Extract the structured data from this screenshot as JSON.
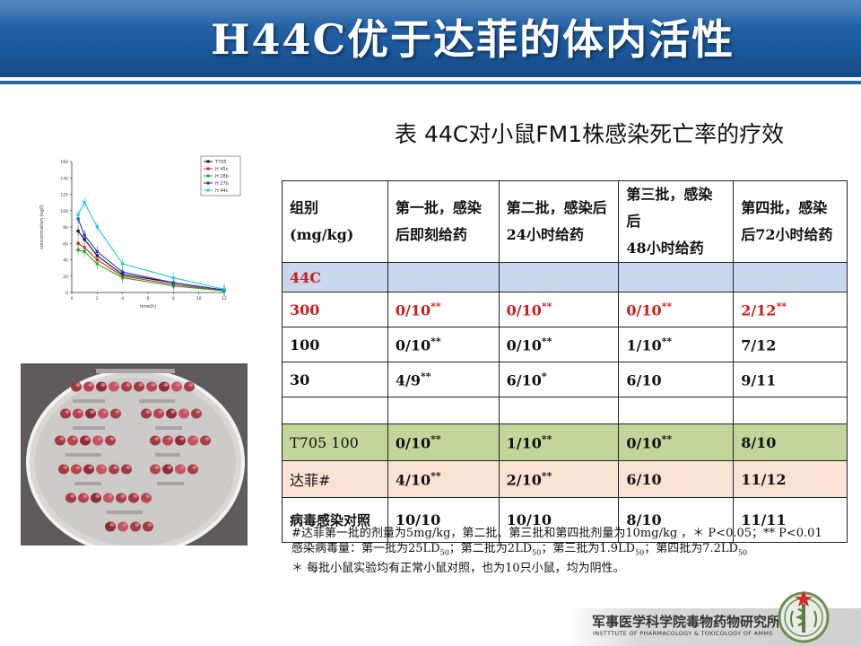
{
  "page": {
    "title": "H44C优于达菲的体内活性"
  },
  "caption": "表  44C对小鼠FM1株感染死亡率的疗效",
  "table": {
    "header": {
      "c1_l1": "组别",
      "c1_l2": "(mg/kg)",
      "c2_l1": "第一批，感染",
      "c2_l2": "后即刻给药",
      "c3_l1": "第二批，感染后",
      "c3_l2": "24小时给药",
      "c4_l1": "第三批，感染后",
      "c4_l2": "48小时给药",
      "c5_l1": "第四批，感染",
      "c5_l2": "后72小时给药"
    },
    "group_44c": "44C",
    "rows": [
      {
        "group": "300",
        "b1": "0/10",
        "b1s": "**",
        "b2": "0/10",
        "b2s": "**",
        "b3": "0/10",
        "b3s": "**",
        "b4": "2/12",
        "b4s": "**"
      },
      {
        "group": "100",
        "b1": "0/10",
        "b1s": "**",
        "b2": "0/10",
        "b2s": "**",
        "b3": "1/10",
        "b3s": "**",
        "b4": "7/12",
        "b4s": ""
      },
      {
        "group": "30",
        "b1": "4/9",
        "b1s": "**",
        "b2": "6/10",
        "b2s": "*",
        "b3": "6/10",
        "b3s": "",
        "b4": "9/11",
        "b4s": ""
      }
    ],
    "t705": {
      "group": "T705 100",
      "b1": "0/10",
      "b1s": "**",
      "b2": "1/10",
      "b2s": "**",
      "b3": "0/10",
      "b3s": "**",
      "b4": "8/10"
    },
    "tamiflu": {
      "group": "达菲#",
      "b1": "4/10",
      "b1s": "**",
      "b2": "2/10",
      "b2s": "**",
      "b3": "6/10",
      "b4": "11/12"
    },
    "control": {
      "group": "病毒感染对照",
      "b1": "10/10",
      "b2": "10/10",
      "b3": "8/10",
      "b4": "11/11"
    }
  },
  "notes": {
    "line1": "#达菲第一批的剂量为5mg/kg，第二批、第三批和第四批剂量为10mg/kg ，＊ P<0.05；** P<0.01",
    "line2_a": "感染病毒量：第一批为25LD",
    "line2_b": "；第二批为2LD",
    "line2_c": "；第三批为1.9LD",
    "line2_d": "；第四批为7.2LD",
    "sub50": "50",
    "line3": "＊ 每批小鼠实验均有正常小鼠对照，也为10只小鼠，均为阴性。"
  },
  "footer": {
    "institute_cn": "军事医学科学院毒物药物研究所",
    "institute_en": "INSTTTUTE OF PHARMACOLOGY & TOXICOLOGY OF AMMS"
  },
  "chart_data": {
    "type": "line",
    "xlabel": "time(h)",
    "ylabel": "concentration (ug/l)",
    "x": [
      0.5,
      1,
      2,
      4,
      8,
      12
    ],
    "xlim": [
      0,
      12
    ],
    "ylim": [
      0,
      160
    ],
    "series": [
      {
        "name": "T705",
        "color": "#111111",
        "values": [
          75,
          65,
          45,
          22,
          12,
          3
        ]
      },
      {
        "name": "H 45c",
        "color": "#d42020",
        "values": [
          60,
          55,
          40,
          20,
          10,
          2
        ]
      },
      {
        "name": "H 28b",
        "color": "#22aa22",
        "values": [
          52,
          50,
          35,
          18,
          8,
          2
        ]
      },
      {
        "name": "H 27b",
        "color": "#2233cc",
        "values": [
          90,
          70,
          50,
          25,
          12,
          3
        ]
      },
      {
        "name": "H 44c",
        "color": "#1ec8d8",
        "values": [
          95,
          110,
          80,
          35,
          18,
          4
        ]
      }
    ]
  },
  "colors": {
    "banner": "#1d5a9e",
    "red": "#d11a1a",
    "green": "#19a22a",
    "row44c": "#c9d8ee",
    "rowT705": "#c2d69b",
    "rowTamiflu": "#fbe2d4"
  }
}
